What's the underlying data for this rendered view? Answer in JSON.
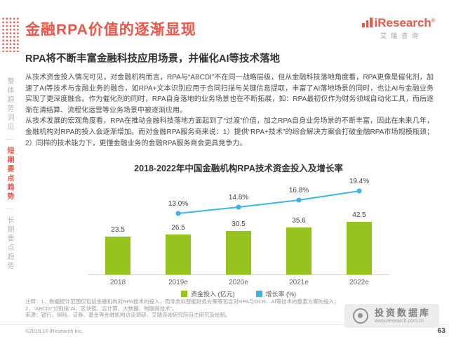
{
  "page": {
    "title": "金融RPA价值的逐渐显现",
    "subtitle": "RPA将不断丰富金融科技应用场景，并催化AI等技术落地",
    "page_number": "63"
  },
  "logo": {
    "brand": "iResearch",
    "reg": "®",
    "brand_cn": "艾瑞咨询"
  },
  "sidebar": {
    "items": [
      {
        "label": "整体趋势洞见",
        "active": false
      },
      {
        "label": "短期要点趋势",
        "active": true
      },
      {
        "label": "长期要点趋势",
        "active": false
      }
    ]
  },
  "body": {
    "paragraph1": "从技术资金投入情况可见，对金融机构而言，RPA与“ABCDI”不在同一战略层级，但从金融科技落地角度看，RPA更像是催化剂，加速了AI等技术与金融业务的融合，如RPA+文本识别应用于合同扫描与关键信息提取，丰富了AI落地场景的同时，也让AI与金融业务实现了更深度融合。作为催化剂的同时，RPA自身落地的业务场景也在不断拓展，如：RPA最初仅作为财务领域自动化工具，而后逐渐在清结算、流程化运营等业务场景中被逐渐应用。",
    "paragraph2": "从技术发展的宏观角度看，RPA在推动金融科技落地方面起到了“过渡”价值，加之RPA自身业务场景的不断丰富，因此在未来几年，金融机构对RPA的投入会逐渐增加。而对金融RPA服务商来说：1）提供“RPA+技术”的综合解决方案会打破金融RPA市场规模瓶颈；2）同样的技术能力下，更懂金融业务的金融RPA服务商会更具竞争力。"
  },
  "chart_data": {
    "type": "bar+line",
    "title": "2018-2022年中国金融机构RPA技术资金投入及增长率",
    "categories": [
      "2018",
      "2019e",
      "2020e",
      "2021e",
      "2022e"
    ],
    "series": [
      {
        "name": "资金投入 (亿元)",
        "type": "bar",
        "color": "#96c31e",
        "values": [
          23.5,
          26.5,
          30.5,
          35.6,
          42.5
        ]
      },
      {
        "name": "增长率 (%)",
        "type": "line",
        "color": "#3bb4e7",
        "values": [
          null,
          13.0,
          14.8,
          16.8,
          19.4
        ]
      }
    ],
    "legend_position": "bottom",
    "grid": false
  },
  "notes": {
    "line1": "注释：1、数据统计范围仅包括金融机构对RPA技术的投入，而非类似智能财务方案等包含对RPA与OCR、AI等技术的整套方案的投入；",
    "line2": "2、“ABCDI”分别指“AI、区块链、云计算、大数据、物联网技术”。",
    "source": "来源：银行、保险、证券、基金等金融机构访谈调研，艾瑞咨询研究院自主研究及绘制。"
  },
  "watermark": {
    "label": "投资数据库",
    "url": "www.iresearch.com.cn"
  },
  "footer": {
    "left": "©2019.10 iResearch Inc."
  }
}
